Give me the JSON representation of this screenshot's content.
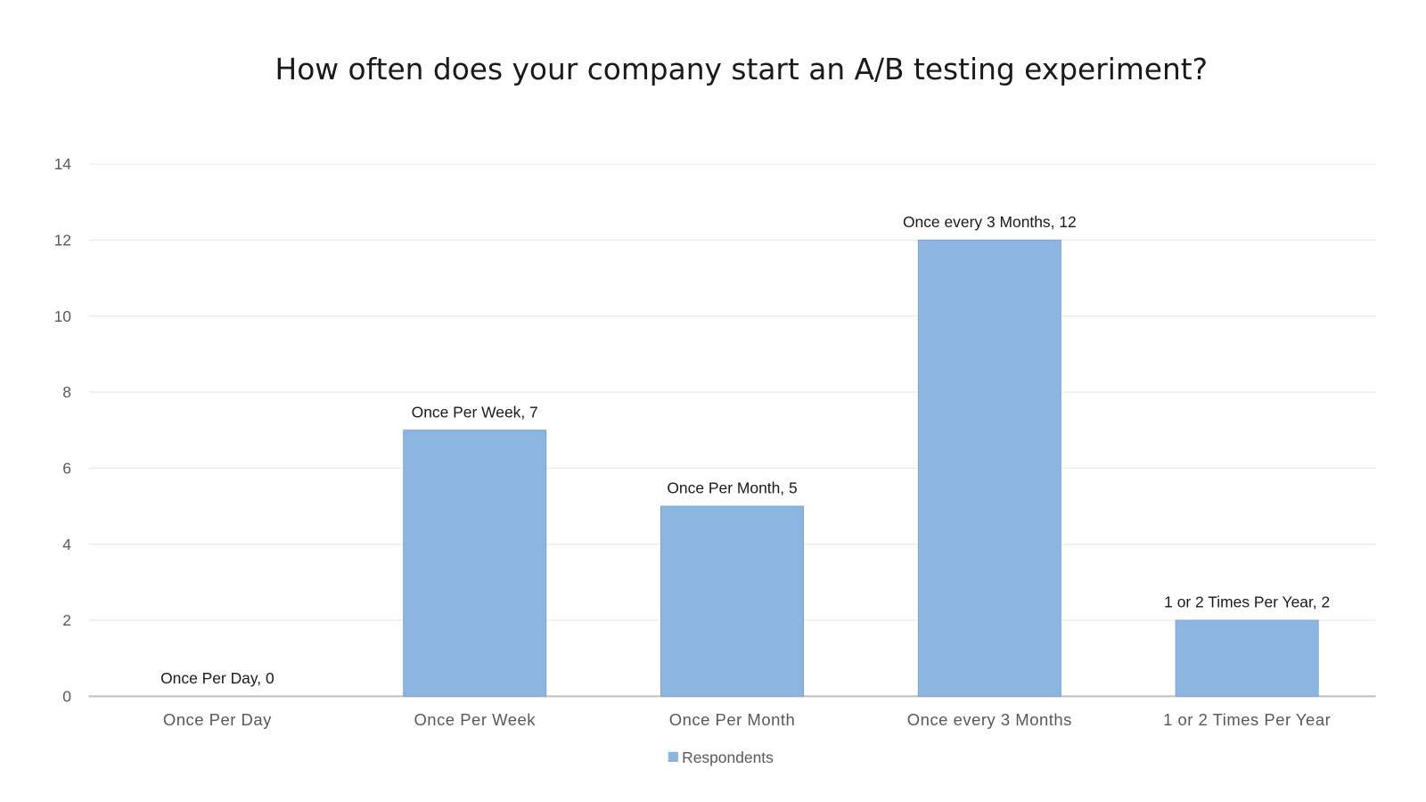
{
  "chart_data": {
    "type": "bar",
    "title": "How often does your company start an A/B testing experiment?",
    "categories": [
      "Once Per Day",
      "Once Per Week",
      "Once Per Month",
      "Once every 3 Months",
      "1 or 2 Times Per Year"
    ],
    "series": [
      {
        "name": "Respondents",
        "values": [
          0,
          7,
          5,
          12,
          2
        ],
        "color": "#8cb6e0"
      }
    ],
    "data_labels": [
      "Once Per Day, 0",
      "Once Per Week, 7",
      "Once Per Month, 5",
      "Once every 3 Months, 12",
      "1 or 2 Times Per Year, 2"
    ],
    "xlabel": "",
    "ylabel": "",
    "ylim": [
      0,
      14
    ],
    "yticks": [
      "0",
      "2",
      "4",
      "6",
      "8",
      "10",
      "12",
      "14"
    ],
    "grid": true,
    "legend": "bottom-center"
  }
}
